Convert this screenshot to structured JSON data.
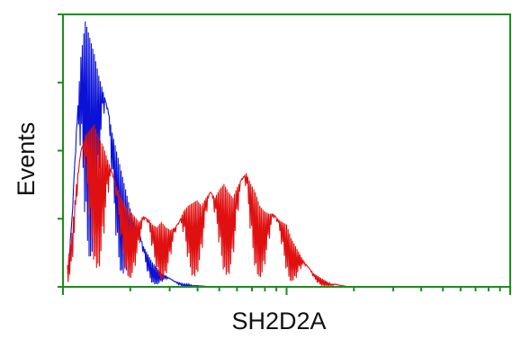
{
  "chart_data": {
    "type": "histogram",
    "xlabel": "SH2D2A",
    "ylabel": "Events",
    "x_scale": "log",
    "x_decades": 2,
    "grid": false,
    "legend": "none",
    "frame_color": "#1a8f1a",
    "series": [
      {
        "color": "#0b12d6",
        "x": [
          0.02,
          0.04,
          0.06,
          0.08,
          0.1,
          0.12,
          0.14,
          0.16,
          0.18,
          0.2,
          0.22,
          0.24,
          0.26,
          0.28,
          0.3,
          0.32,
          0.34,
          0.36,
          0.38,
          0.4,
          0.42,
          0.44,
          0.46,
          0.48,
          0.5,
          0.52,
          0.54,
          0.56,
          0.58,
          0.6,
          0.62,
          0.64,
          0.66
        ],
        "values": [
          0.05,
          0.25,
          0.58,
          0.85,
          0.98,
          0.92,
          0.86,
          0.78,
          0.72,
          0.66,
          0.57,
          0.5,
          0.43,
          0.36,
          0.29,
          0.24,
          0.2,
          0.15,
          0.12,
          0.09,
          0.07,
          0.05,
          0.04,
          0.03,
          0.02,
          0.015,
          0.01,
          0.01,
          0.005,
          0.005,
          0.003,
          0.002,
          0.0
        ]
      },
      {
        "color": "#e01010",
        "x": [
          0.02,
          0.04,
          0.06,
          0.08,
          0.1,
          0.12,
          0.14,
          0.16,
          0.18,
          0.2,
          0.22,
          0.24,
          0.26,
          0.28,
          0.3,
          0.32,
          0.34,
          0.36,
          0.38,
          0.4,
          0.42,
          0.44,
          0.46,
          0.48,
          0.5,
          0.52,
          0.54,
          0.56,
          0.58,
          0.6,
          0.62,
          0.64,
          0.66,
          0.68,
          0.7,
          0.72,
          0.74,
          0.76,
          0.78,
          0.8,
          0.82,
          0.84,
          0.86,
          0.88,
          0.9,
          0.92,
          0.94,
          0.96,
          0.98,
          1.0,
          1.02,
          1.04,
          1.06,
          1.08,
          1.1,
          1.12,
          1.14,
          1.16,
          1.18,
          1.2,
          1.22,
          1.24,
          1.26,
          1.28
        ],
        "values": [
          0.08,
          0.2,
          0.38,
          0.5,
          0.56,
          0.58,
          0.6,
          0.55,
          0.52,
          0.47,
          0.42,
          0.37,
          0.33,
          0.3,
          0.28,
          0.26,
          0.24,
          0.26,
          0.25,
          0.23,
          0.22,
          0.24,
          0.22,
          0.21,
          0.22,
          0.24,
          0.28,
          0.3,
          0.31,
          0.32,
          0.3,
          0.33,
          0.35,
          0.33,
          0.36,
          0.38,
          0.35,
          0.33,
          0.37,
          0.4,
          0.42,
          0.38,
          0.35,
          0.3,
          0.28,
          0.27,
          0.27,
          0.25,
          0.24,
          0.23,
          0.18,
          0.15,
          0.12,
          0.09,
          0.07,
          0.05,
          0.04,
          0.03,
          0.02,
          0.01,
          0.01,
          0.005,
          0.003,
          0.0
        ]
      }
    ]
  }
}
